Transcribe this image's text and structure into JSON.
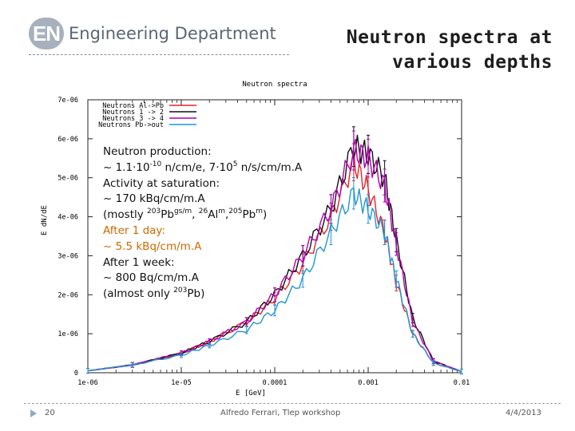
{
  "header": {
    "logo_mark": "EN",
    "logo_text": "Engineering Department",
    "title_line1": "Neutron spectra at",
    "title_line2": "various depths"
  },
  "chart_data": {
    "type": "line",
    "title": "Neutron spectra",
    "xlabel": "E [GeV]",
    "ylabel": "E dN/dE",
    "x_scale": "log",
    "xlim": [
      1e-06,
      0.01
    ],
    "ylim": [
      0,
      7e-06
    ],
    "x_tick_labels": [
      "1e-06",
      "1e-05",
      "0.0001",
      "0.001",
      "0.01"
    ],
    "y_tick_labels": [
      "0",
      "1e-06",
      "2e-06",
      "3e-06",
      "4e-06",
      "5e-06",
      "6e-06",
      "7e-06"
    ],
    "legend_position": "top-left",
    "series": [
      {
        "name": "Neutrons Al->Pb",
        "color": "#e3242b",
        "x": [
          1e-06,
          3e-06,
          1e-05,
          2e-05,
          5e-05,
          0.0001,
          0.0002,
          0.0004,
          0.0007,
          0.001,
          0.0015,
          0.002,
          0.003,
          0.005,
          0.01
        ],
        "y": [
          5e-08,
          2e-07,
          5e-07,
          8e-07,
          1.3e-06,
          1.9e-06,
          2.8e-06,
          4e-06,
          5.4e-06,
          4.7e-06,
          3.6e-06,
          2.3e-06,
          1e-06,
          2.5e-07,
          3e-08
        ]
      },
      {
        "name": "Neutrons 1 -> 2",
        "color": "#111111",
        "x": [
          1e-06,
          3e-06,
          1e-05,
          2e-05,
          5e-05,
          0.0001,
          0.0002,
          0.0004,
          0.0007,
          0.001,
          0.0015,
          0.002,
          0.003,
          0.005,
          0.01
        ],
        "y": [
          5e-08,
          2e-07,
          5e-07,
          8e-07,
          1.3e-06,
          2e-06,
          3e-06,
          4.2e-06,
          5.8e-06,
          5.6e-06,
          5e-06,
          3.4e-06,
          1.4e-06,
          3e-07,
          3e-08
        ]
      },
      {
        "name": "Neutrons 3 -> 4",
        "color": "#b000b0",
        "x": [
          1e-06,
          3e-06,
          1e-05,
          2e-05,
          5e-05,
          0.0001,
          0.0002,
          0.0004,
          0.0007,
          0.001,
          0.0015,
          0.002,
          0.003,
          0.005,
          0.01
        ],
        "y": [
          5e-08,
          2e-07,
          5e-07,
          8e-07,
          1.3e-06,
          2e-06,
          3e-06,
          4.2e-06,
          5.7e-06,
          5.5e-06,
          4.8e-06,
          3.3e-06,
          1.3e-06,
          3e-07,
          3e-08
        ]
      },
      {
        "name": "Neutrons Pb->out",
        "color": "#2196d3",
        "x": [
          1e-06,
          3e-06,
          1e-05,
          2e-05,
          5e-05,
          0.0001,
          0.0002,
          0.0004,
          0.0007,
          0.001,
          0.0015,
          0.002,
          0.003,
          0.005,
          0.01
        ],
        "y": [
          5e-08,
          2e-07,
          4.5e-07,
          7e-07,
          1.1e-06,
          1.6e-06,
          2.4e-06,
          3.6e-06,
          4.6e-06,
          4.2e-06,
          3.6e-06,
          2.4e-06,
          1e-06,
          2.5e-07,
          3e-08
        ]
      }
    ]
  },
  "annotation": {
    "line1": "Neutron production:",
    "line2_a": "~ 1.1·10",
    "line2_sup1": "-10",
    "line2_b": " n/cm/e,   7·10",
    "line2_sup2": "5",
    "line2_c": " n/s/cm/m.A",
    "line3": "Activity at saturation:",
    "line4": "~ 170 kBq/cm/m.A",
    "line5_a": "(mostly ",
    "line5_sup1": "203",
    "line5_b": "Pb",
    "line5_sup2": "gs/m",
    "line5_c": ", ",
    "line5_sup3": "26",
    "line5_d": "Al",
    "line5_sup4": "m",
    "line5_e": ",",
    "line5_sup5": "205",
    "line5_f": "Pb",
    "line5_sup6": "m",
    "line5_g": ")",
    "line6": "After 1 day:",
    "line7": "~ 5.5 kBq/cm/m.A",
    "line8": "After 1 week:",
    "line9": "~ 800 Bq/cm/m.A",
    "line10_a": "(almost only ",
    "line10_sup": "203",
    "line10_b": "Pb)"
  },
  "footer": {
    "page_number": "20",
    "author": "Alfredo Ferrari, Tlep workshop",
    "date": "4/4/2013"
  }
}
